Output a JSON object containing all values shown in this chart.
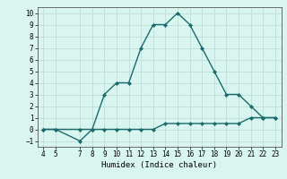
{
  "line1_x": [
    4,
    5,
    7,
    8,
    9,
    10,
    11,
    12,
    13,
    14,
    15,
    16,
    17,
    18,
    19,
    20,
    21,
    22,
    23
  ],
  "line1_y": [
    0,
    0,
    -1,
    0,
    3,
    4,
    4,
    7,
    9,
    9,
    10,
    9,
    7,
    5,
    3,
    3,
    2,
    1,
    1
  ],
  "line2_x": [
    4,
    5,
    7,
    8,
    9,
    10,
    11,
    12,
    13,
    14,
    15,
    16,
    17,
    18,
    19,
    20,
    21,
    22,
    23
  ],
  "line2_y": [
    0,
    0,
    0,
    0,
    0,
    0,
    0,
    0,
    0,
    0.5,
    0.5,
    0.5,
    0.5,
    0.5,
    0.5,
    0.5,
    1,
    1,
    1
  ],
  "line_color": "#1a6b6b",
  "bg_color": "#d8f5f0",
  "grid_color": "#c0ddd8",
  "xlabel": "Humidex (Indice chaleur)",
  "xlim": [
    3.5,
    23.5
  ],
  "ylim": [
    -1.5,
    10.5
  ],
  "yticks": [
    -1,
    0,
    1,
    2,
    3,
    4,
    5,
    6,
    7,
    8,
    9,
    10
  ],
  "xticks": [
    4,
    5,
    7,
    8,
    9,
    10,
    11,
    12,
    13,
    14,
    15,
    16,
    17,
    18,
    19,
    20,
    21,
    22,
    23
  ],
  "marker": "D",
  "marker_size": 2,
  "line_width": 1.0,
  "xlabel_fontsize": 6.5,
  "tick_fontsize": 5.5
}
